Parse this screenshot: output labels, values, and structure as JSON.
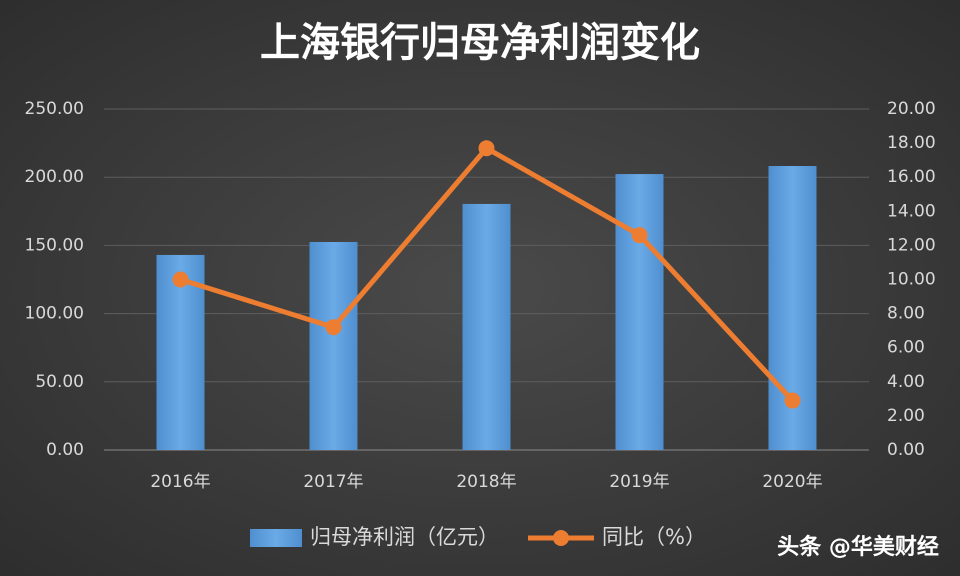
{
  "chart_data": {
    "type": "bar_line",
    "title": "上海银行归母净利润变化",
    "categories": [
      "2016年",
      "2017年",
      "2018年",
      "2019年",
      "2020年"
    ],
    "series": [
      {
        "name": "归母净利润（亿元）",
        "type": "bar",
        "color": "#5b9bd5",
        "values": [
          143,
          152.5,
          180.4,
          202.3,
          208.2
        ]
      },
      {
        "name": "同比（%）",
        "type": "line",
        "axis": "y2",
        "color": "#ed7d31",
        "values": [
          10.0,
          7.2,
          17.7,
          12.6,
          2.9
        ]
      }
    ],
    "ylim": [
      0,
      250
    ],
    "yticks": [
      {
        "value": 0,
        "label": "0.00"
      },
      {
        "value": 50,
        "label": "50.00"
      },
      {
        "value": 100,
        "label": "100.00"
      },
      {
        "value": 150,
        "label": "150.00"
      },
      {
        "value": 200,
        "label": "200.00"
      },
      {
        "value": 250,
        "label": "250.00"
      }
    ],
    "y2lim": [
      0,
      20
    ],
    "y2ticks": [
      {
        "value": 0,
        "label": "0.00"
      },
      {
        "value": 2,
        "label": "2.00"
      },
      {
        "value": 4,
        "label": "4.00"
      },
      {
        "value": 6,
        "label": "6.00"
      },
      {
        "value": 8,
        "label": "8.00"
      },
      {
        "value": 10,
        "label": "10.00"
      },
      {
        "value": 12,
        "label": "12.00"
      },
      {
        "value": 14,
        "label": "14.00"
      },
      {
        "value": 16,
        "label": "16.00"
      },
      {
        "value": 18,
        "label": "18.00"
      },
      {
        "value": 20,
        "label": "20.00"
      }
    ],
    "grid": true,
    "legend": "bottom",
    "watermark": "头条 @华美财经"
  }
}
